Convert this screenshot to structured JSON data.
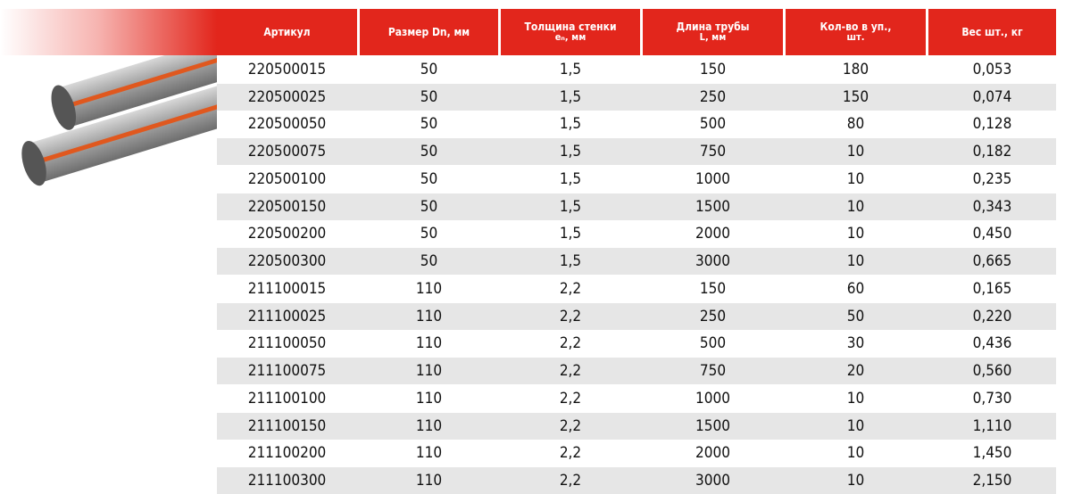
{
  "table": {
    "header": [
      [
        "Артикул"
      ],
      [
        "Размер Dn, мм"
      ],
      [
        "Толщина стенки",
        "eₙ, мм"
      ],
      [
        "Длина трубы",
        "L, мм"
      ],
      [
        "Кол-во в уп.,",
        "шт."
      ],
      [
        "Вес шт., кг"
      ]
    ],
    "rows": [
      [
        "220500015",
        "50",
        "1,5",
        "150",
        "180",
        "0,053"
      ],
      [
        "220500025",
        "50",
        "1,5",
        "250",
        "150",
        "0,074"
      ],
      [
        "220500050",
        "50",
        "1,5",
        "500",
        "80",
        "0,128"
      ],
      [
        "220500075",
        "50",
        "1,5",
        "750",
        "10",
        "0,182"
      ],
      [
        "220500100",
        "50",
        "1,5",
        "1000",
        "10",
        "0,235"
      ],
      [
        "220500150",
        "50",
        "1,5",
        "1500",
        "10",
        "0,343"
      ],
      [
        "220500200",
        "50",
        "1,5",
        "2000",
        "10",
        "0,450"
      ],
      [
        "220500300",
        "50",
        "1,5",
        "3000",
        "10",
        "0,665"
      ],
      [
        "211100015",
        "110",
        "2,2",
        "150",
        "60",
        "0,165"
      ],
      [
        "211100025",
        "110",
        "2,2",
        "250",
        "50",
        "0,220"
      ],
      [
        "211100050",
        "110",
        "2,2",
        "500",
        "30",
        "0,436"
      ],
      [
        "211100075",
        "110",
        "2,2",
        "750",
        "20",
        "0,560"
      ],
      [
        "211100100",
        "110",
        "2,2",
        "1000",
        "10",
        "0,730"
      ],
      [
        "211100150",
        "110",
        "2,2",
        "1500",
        "10",
        "1,110"
      ],
      [
        "211100200",
        "110",
        "2,2",
        "2000",
        "10",
        "1,450"
      ],
      [
        "211100300",
        "110",
        "2,2",
        "3000",
        "10",
        "2,150"
      ]
    ]
  }
}
